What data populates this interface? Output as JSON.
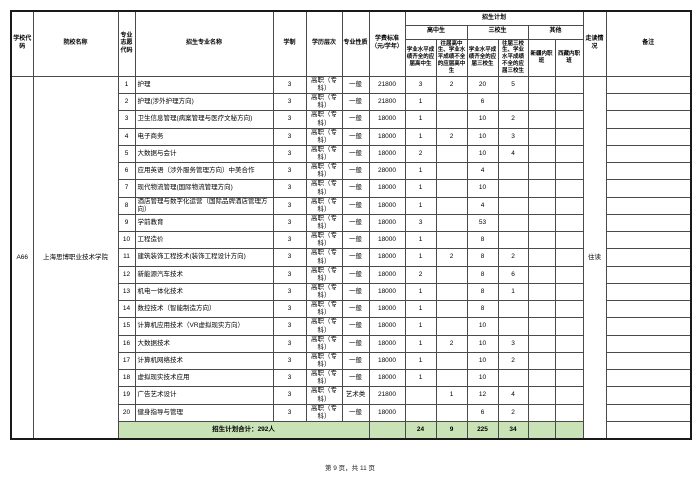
{
  "page": {
    "footer": "第 9 页，共 11 页"
  },
  "colors": {
    "total_row_bg": "#c9e3b6",
    "border": "#4a4a4a"
  },
  "table": {
    "headers": {
      "school_code": "学校代码",
      "college_name": "院校名称",
      "major_code": "专业志愿代码",
      "major_name": "招生专业名称",
      "years": "学制",
      "level": "学历层次",
      "nature": "专业性质",
      "fee": "学费标准（元/学年）",
      "plan_group": "招生计划",
      "hs_group": "高中生",
      "sx_group": "三校生",
      "other_group": "其他",
      "hs_fresh": "学业水平成绩齐全的应届高中生",
      "hs_past": "往届高中生、学业水平成绩不全的应届高中生",
      "sx_fresh": "学业水平成绩齐全的应届三校生",
      "sx_past": "往届三校生、学业水平成绩不全的应届三校生",
      "xj_class": "新疆内职班",
      "xz_class": "西藏内职班",
      "commute": "走读情况",
      "remarks": "备注"
    },
    "school": {
      "code": "A66",
      "name": "上海思博职业技术学院",
      "commute": "住读"
    },
    "rows": [
      {
        "num": "1",
        "major": "护理",
        "years": "3",
        "level": "高职（专科）",
        "nature": "一般",
        "fee": "21800",
        "hs_fresh": "3",
        "hs_past": "2",
        "sx_fresh": "20",
        "sx_past": "5",
        "xj": "",
        "xz": "",
        "remark": ""
      },
      {
        "num": "2",
        "major": "护理(涉外护理方向)",
        "years": "3",
        "level": "高职（专科）",
        "nature": "一般",
        "fee": "21800",
        "hs_fresh": "1",
        "hs_past": "",
        "sx_fresh": "6",
        "sx_past": "",
        "xj": "",
        "xz": "",
        "remark": ""
      },
      {
        "num": "3",
        "major": "卫生信息管理(病案管理与医疗文秘方向)",
        "years": "3",
        "level": "高职（专科）",
        "nature": "一般",
        "fee": "18000",
        "hs_fresh": "1",
        "hs_past": "",
        "sx_fresh": "10",
        "sx_past": "2",
        "xj": "",
        "xz": "",
        "remark": ""
      },
      {
        "num": "4",
        "major": "电子商务",
        "years": "3",
        "level": "高职（专科）",
        "nature": "一般",
        "fee": "18000",
        "hs_fresh": "1",
        "hs_past": "2",
        "sx_fresh": "10",
        "sx_past": "3",
        "xj": "",
        "xz": "",
        "remark": ""
      },
      {
        "num": "5",
        "major": "大数据与会计",
        "years": "3",
        "level": "高职（专科）",
        "nature": "一般",
        "fee": "18000",
        "hs_fresh": "2",
        "hs_past": "",
        "sx_fresh": "10",
        "sx_past": "4",
        "xj": "",
        "xz": "",
        "remark": ""
      },
      {
        "num": "6",
        "major": "应用英语（涉外服务管理方向）中美合作",
        "years": "3",
        "level": "高职（专科）",
        "nature": "一般",
        "fee": "28000",
        "hs_fresh": "1",
        "hs_past": "",
        "sx_fresh": "4",
        "sx_past": "",
        "xj": "",
        "xz": "",
        "remark": ""
      },
      {
        "num": "7",
        "major": "现代物流管理(国际物流管理方向)",
        "years": "3",
        "level": "高职（专科）",
        "nature": "一般",
        "fee": "18000",
        "hs_fresh": "1",
        "hs_past": "",
        "sx_fresh": "10",
        "sx_past": "",
        "xj": "",
        "xz": "",
        "remark": ""
      },
      {
        "num": "8",
        "major": "酒店管理与数字化运营（国际品牌酒店管理方向）",
        "years": "3",
        "level": "高职（专科）",
        "nature": "一般",
        "fee": "18000",
        "hs_fresh": "1",
        "hs_past": "",
        "sx_fresh": "4",
        "sx_past": "",
        "xj": "",
        "xz": "",
        "remark": ""
      },
      {
        "num": "9",
        "major": "学前教育",
        "years": "3",
        "level": "高职（专科）",
        "nature": "一般",
        "fee": "18000",
        "hs_fresh": "3",
        "hs_past": "",
        "sx_fresh": "53",
        "sx_past": "",
        "xj": "",
        "xz": "",
        "remark": ""
      },
      {
        "num": "10",
        "major": "工程造价",
        "years": "3",
        "level": "高职（专科）",
        "nature": "一般",
        "fee": "18000",
        "hs_fresh": "1",
        "hs_past": "",
        "sx_fresh": "8",
        "sx_past": "",
        "xj": "",
        "xz": "",
        "remark": ""
      },
      {
        "num": "11",
        "major": "建筑装饰工程技术(装饰工程设计方向)",
        "years": "3",
        "level": "高职（专科）",
        "nature": "一般",
        "fee": "18000",
        "hs_fresh": "1",
        "hs_past": "2",
        "sx_fresh": "8",
        "sx_past": "2",
        "xj": "",
        "xz": "",
        "remark": ""
      },
      {
        "num": "12",
        "major": "新能源汽车技术",
        "years": "3",
        "level": "高职（专科）",
        "nature": "一般",
        "fee": "18000",
        "hs_fresh": "2",
        "hs_past": "",
        "sx_fresh": "8",
        "sx_past": "6",
        "xj": "",
        "xz": "",
        "remark": ""
      },
      {
        "num": "13",
        "major": "机电一体化技术",
        "years": "3",
        "level": "高职（专科）",
        "nature": "一般",
        "fee": "18000",
        "hs_fresh": "1",
        "hs_past": "",
        "sx_fresh": "8",
        "sx_past": "1",
        "xj": "",
        "xz": "",
        "remark": ""
      },
      {
        "num": "14",
        "major": "数控技术（智能制造方向）",
        "years": "3",
        "level": "高职（专科）",
        "nature": "一般",
        "fee": "18000",
        "hs_fresh": "1",
        "hs_past": "",
        "sx_fresh": "8",
        "sx_past": "",
        "xj": "",
        "xz": "",
        "remark": ""
      },
      {
        "num": "15",
        "major": "计算机应用技术（VR虚拟现实方向）",
        "years": "3",
        "level": "高职（专科）",
        "nature": "一般",
        "fee": "18000",
        "hs_fresh": "1",
        "hs_past": "",
        "sx_fresh": "10",
        "sx_past": "",
        "xj": "",
        "xz": "",
        "remark": ""
      },
      {
        "num": "16",
        "major": "大数据技术",
        "years": "3",
        "level": "高职（专科）",
        "nature": "一般",
        "fee": "18000",
        "hs_fresh": "1",
        "hs_past": "2",
        "sx_fresh": "10",
        "sx_past": "3",
        "xj": "",
        "xz": "",
        "remark": ""
      },
      {
        "num": "17",
        "major": "计算机网络技术",
        "years": "3",
        "level": "高职（专科）",
        "nature": "一般",
        "fee": "18000",
        "hs_fresh": "1",
        "hs_past": "",
        "sx_fresh": "10",
        "sx_past": "2",
        "xj": "",
        "xz": "",
        "remark": ""
      },
      {
        "num": "18",
        "major": "虚拟现实技术应用",
        "years": "3",
        "level": "高职（专科）",
        "nature": "一般",
        "fee": "18000",
        "hs_fresh": "1",
        "hs_past": "",
        "sx_fresh": "10",
        "sx_past": "",
        "xj": "",
        "xz": "",
        "remark": ""
      },
      {
        "num": "19",
        "major": "广告艺术设计",
        "years": "3",
        "level": "高职（专科）",
        "nature": "艺术类",
        "fee": "21800",
        "hs_fresh": "",
        "hs_past": "1",
        "sx_fresh": "12",
        "sx_past": "4",
        "xj": "",
        "xz": "",
        "remark": ""
      },
      {
        "num": "20",
        "major": "健身指导与管理",
        "years": "3",
        "level": "高职（专科）",
        "nature": "一般",
        "fee": "18000",
        "hs_fresh": "",
        "hs_past": "",
        "sx_fresh": "6",
        "sx_past": "2",
        "xj": "",
        "xz": "",
        "remark": ""
      }
    ],
    "footer": {
      "label": "招生计划合计：292人",
      "hs_fresh": "24",
      "hs_past": "9",
      "sx_fresh": "225",
      "sx_past": "34"
    }
  }
}
